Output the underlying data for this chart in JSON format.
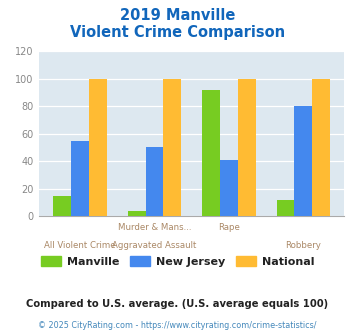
{
  "title_line1": "2019 Manville",
  "title_line2": "Violent Crime Comparison",
  "x_top_labels": [
    "",
    "Murder & Mans...",
    "Rape",
    ""
  ],
  "x_bottom_labels": [
    "All Violent Crime",
    "Aggravated Assault",
    "",
    "Robbery"
  ],
  "manville": [
    15,
    4,
    92,
    12
  ],
  "new_jersey": [
    55,
    50,
    41,
    80
  ],
  "national": [
    100,
    100,
    100,
    100
  ],
  "manville_color": "#77cc22",
  "nj_color": "#4488ee",
  "national_color": "#ffbb33",
  "bg_color": "#dde8f0",
  "ylim": [
    0,
    120
  ],
  "yticks": [
    0,
    20,
    40,
    60,
    80,
    100,
    120
  ],
  "footnote1": "Compared to U.S. average. (U.S. average equals 100)",
  "footnote2": "© 2025 CityRating.com - https://www.cityrating.com/crime-statistics/",
  "legend_labels": [
    "Manville",
    "New Jersey",
    "National"
  ],
  "title_color": "#1166bb",
  "xtick_color": "#aa8866",
  "ytick_color": "#888888",
  "footnote1_color": "#222222",
  "footnote2_color": "#4488bb"
}
